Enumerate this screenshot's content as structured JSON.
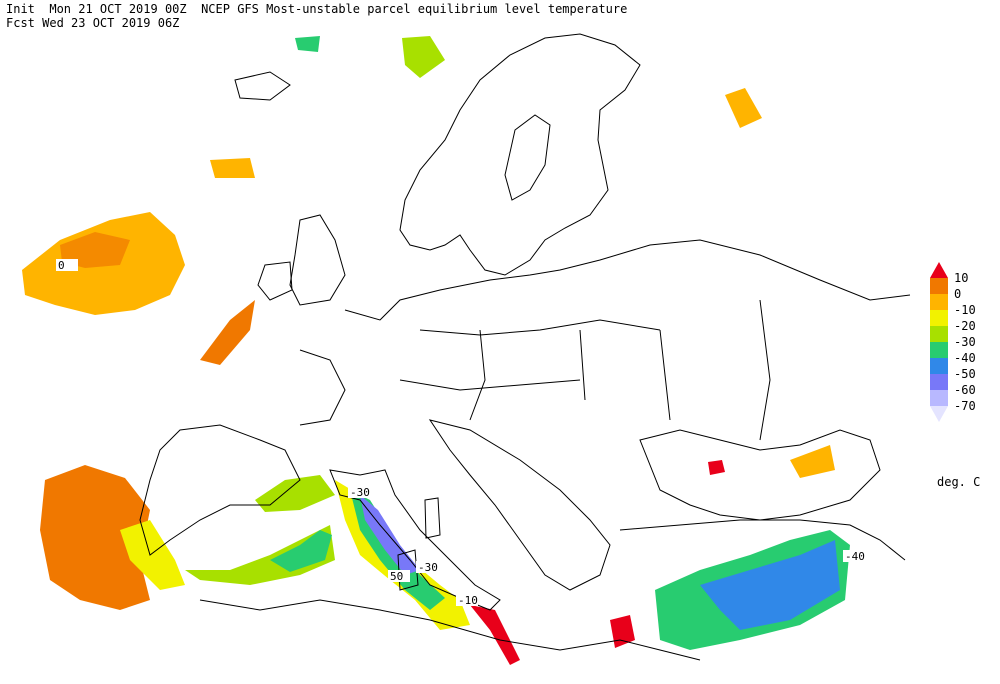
{
  "header": {
    "line1": "Init  Mon 21 OCT 2019 00Z  NCEP GFS Most-unstable parcel equilibrium level temperature",
    "line2": "Fcst Wed 23 OCT 2019 06Z"
  },
  "colorbar": {
    "labels": [
      "10",
      "0",
      "-10",
      "-20",
      "-30",
      "-40",
      "-50",
      "-60",
      "-70"
    ],
    "colors": [
      "#e8001a",
      "#f07800",
      "#ffb400",
      "#f2f200",
      "#a8e000",
      "#28cc70",
      "#3088e8",
      "#7878f8",
      "#b8b8ff",
      "#e4e4ff"
    ],
    "unit": "deg. C"
  },
  "contour_labels": [
    "0",
    "-30",
    "50",
    "-30",
    "-10",
    "-40"
  ]
}
